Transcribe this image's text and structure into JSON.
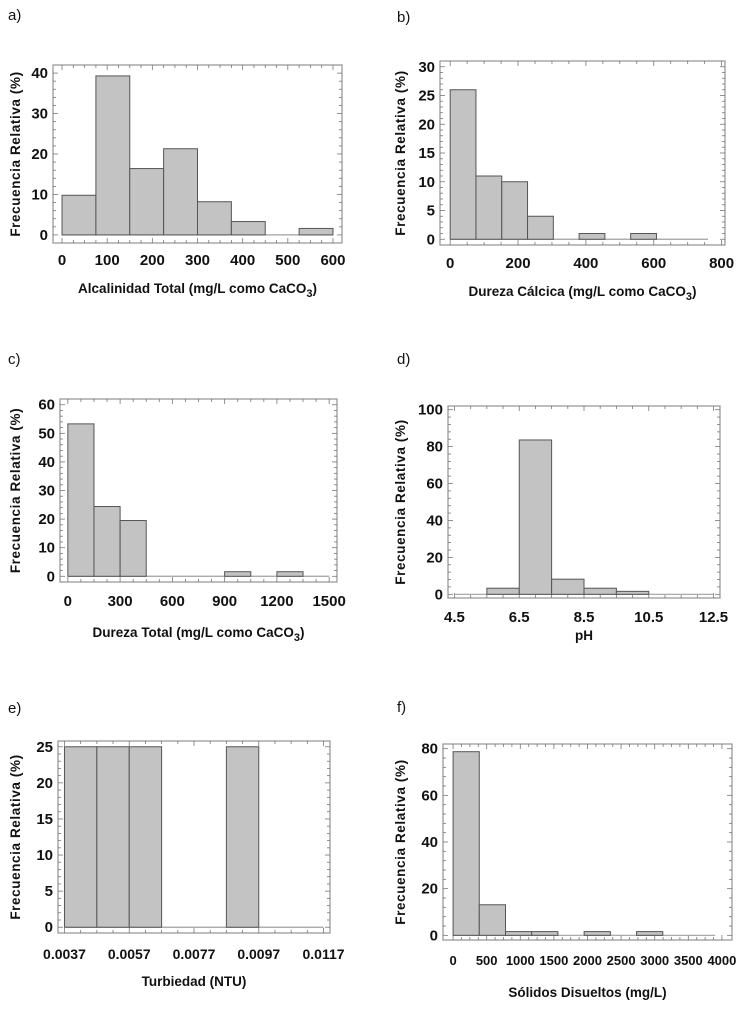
{
  "ylabel_common": "Frecuencia Relativa (%)",
  "chart_data": [
    {
      "id": "a",
      "panel_label": "a)",
      "type": "bar",
      "histogram": true,
      "xlabel": "Alcalinidad Total (mg/L como CaCO",
      "xlabel_sub": "3",
      "xlabel_end": ")",
      "ylabel": "Frecuencia Relativa (%)",
      "xlim": [
        -20,
        620
      ],
      "ylim": [
        -2,
        42
      ],
      "xticks": [
        0,
        100,
        200,
        300,
        400,
        500,
        600
      ],
      "xtick_labels": [
        "0",
        "100",
        "200",
        "300",
        "400",
        "500",
        "600"
      ],
      "yticks": [
        0,
        10,
        20,
        30,
        40
      ],
      "ytick_labels": [
        "0",
        "10",
        "20",
        "30",
        "40"
      ],
      "bins": [
        0,
        75,
        150,
        225,
        300,
        375,
        450,
        525,
        600
      ],
      "values": [
        9.8,
        39.3,
        16.4,
        21.3,
        8.2,
        3.3,
        0,
        1.6
      ]
    },
    {
      "id": "b",
      "panel_label": "b)",
      "type": "bar",
      "histogram": true,
      "xlabel": "Dureza Cálcica (mg/L como CaCO",
      "xlabel_sub": "3",
      "xlabel_end": ")",
      "ylabel": "Frecuencia Relativa (%)",
      "xlim": [
        -30,
        810
      ],
      "ylim": [
        -1,
        31
      ],
      "xticks": [
        0,
        200,
        400,
        600,
        800
      ],
      "xtick_labels": [
        "0",
        "200",
        "400",
        "600",
        "800"
      ],
      "yticks": [
        0,
        5,
        10,
        15,
        20,
        25,
        30
      ],
      "ytick_labels": [
        "0",
        "5",
        "10",
        "15",
        "20",
        "25",
        "30"
      ],
      "bins": [
        0,
        76,
        152,
        228,
        304,
        380,
        456,
        532,
        608,
        684,
        760
      ],
      "values": [
        26,
        11,
        10,
        4,
        0,
        1,
        0,
        1,
        0,
        0
      ]
    },
    {
      "id": "c",
      "panel_label": "c)",
      "type": "bar",
      "histogram": true,
      "xlabel": "Dureza Total (mg/L como CaCO",
      "xlabel_sub": "3",
      "xlabel_end": ")",
      "ylabel": "Frecuencia Relativa (%)",
      "xlim": [
        -45,
        1545
      ],
      "ylim": [
        -2,
        62
      ],
      "xticks": [
        0,
        300,
        600,
        900,
        1200,
        1500
      ],
      "xtick_labels": [
        "0",
        "300",
        "600",
        "900",
        "1200",
        "1500"
      ],
      "yticks": [
        0,
        10,
        20,
        30,
        40,
        50,
        60
      ],
      "ytick_labels": [
        "0",
        "10",
        "20",
        "30",
        "40",
        "50",
        "60"
      ],
      "bins": [
        0,
        150,
        300,
        450,
        600,
        750,
        900,
        1050,
        1200,
        1350,
        1500
      ],
      "values": [
        53.3,
        24.4,
        19.5,
        0,
        0,
        0,
        1.6,
        0,
        1.6,
        0
      ]
    },
    {
      "id": "d",
      "panel_label": "d)",
      "type": "bar",
      "histogram": true,
      "xlabel": "pH",
      "xlabel_sub": "",
      "xlabel_end": "",
      "ylabel": "Frecuencia Relativa (%)",
      "xlim": [
        4.3,
        12.7
      ],
      "ylim": [
        -2,
        102
      ],
      "xticks": [
        4.5,
        6.5,
        8.5,
        10.5,
        12.5
      ],
      "xtick_labels": [
        "4.5",
        "6.5",
        "8.5",
        "10.5",
        "12.5"
      ],
      "yticks": [
        0,
        20,
        40,
        60,
        80,
        100
      ],
      "ytick_labels": [
        "0",
        "20",
        "40",
        "60",
        "80",
        "100"
      ],
      "bins": [
        4.5,
        5.5,
        6.5,
        7.5,
        8.5,
        9.5,
        10.5,
        11.5,
        12.5
      ],
      "values": [
        0,
        3.3,
        83.6,
        8.2,
        3.3,
        1.6,
        0,
        0
      ]
    },
    {
      "id": "e",
      "panel_label": "e)",
      "type": "bar",
      "histogram": true,
      "xlabel": "Turbiedad (NTU)",
      "xlabel_sub": "",
      "xlabel_end": "",
      "ylabel": "Frecuencia Relativa (%)",
      "xlim": [
        0.0035,
        0.0119
      ],
      "ylim": [
        -0.8,
        25.8
      ],
      "xticks": [
        0.0037,
        0.0057,
        0.0077,
        0.0097,
        0.0117
      ],
      "xtick_labels": [
        "0.0037",
        "0.0057",
        "0.0077",
        "0.0097",
        "0.0117"
      ],
      "yticks": [
        0,
        5,
        10,
        15,
        20,
        25
      ],
      "ytick_labels": [
        "0",
        "5",
        "10",
        "15",
        "20",
        "25"
      ],
      "bins": [
        0.0037,
        0.0047,
        0.0057,
        0.0067,
        0.0077,
        0.0087,
        0.0097,
        0.0107,
        0.0117
      ],
      "values": [
        25,
        25,
        25,
        0,
        0,
        25,
        0,
        0
      ]
    },
    {
      "id": "f",
      "panel_label": "f)",
      "type": "bar",
      "histogram": true,
      "xlabel": "Sólidos Disueltos (mg/L)",
      "xlabel_sub": "",
      "xlabel_end": "",
      "ylabel": "Frecuencia Relativa (%)",
      "xlim": [
        -150,
        4150
      ],
      "ylim": [
        -2,
        82
      ],
      "xticks": [
        0,
        500,
        1000,
        1500,
        2000,
        2500,
        3000,
        3500,
        4000
      ],
      "xtick_labels": [
        "0",
        "500",
        "1000",
        "1500",
        "2000",
        "2500",
        "3000",
        "3500",
        "4000"
      ],
      "yticks": [
        0,
        20,
        40,
        60,
        80
      ],
      "ytick_labels": [
        "0",
        "20",
        "40",
        "60",
        "80"
      ],
      "bins": [
        0,
        390,
        780,
        1170,
        1560,
        1950,
        2340,
        2730,
        3120,
        3510,
        3900
      ],
      "values": [
        78.7,
        13.1,
        1.6,
        1.6,
        0,
        1.6,
        0,
        1.6,
        0,
        0
      ]
    }
  ]
}
